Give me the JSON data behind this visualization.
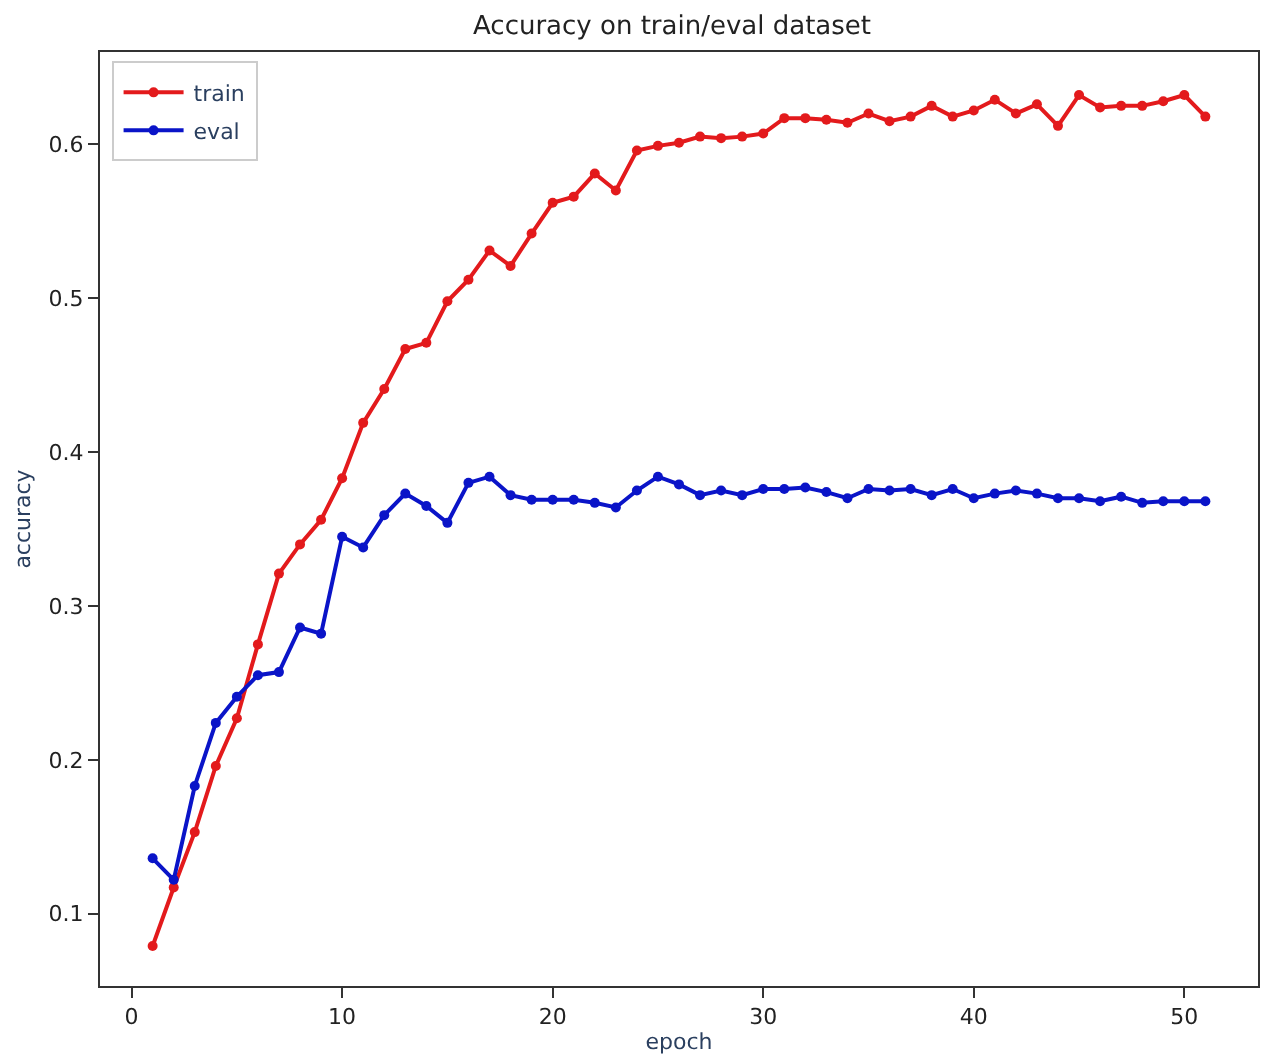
{
  "chart_data": {
    "type": "line",
    "title": "Accuracy on train/eval dataset",
    "xlabel": "epoch",
    "ylabel": "accuracy",
    "x": [
      1,
      2,
      3,
      4,
      5,
      6,
      7,
      8,
      9,
      10,
      11,
      12,
      13,
      14,
      15,
      16,
      17,
      18,
      19,
      20,
      21,
      22,
      23,
      24,
      25,
      26,
      27,
      28,
      29,
      30,
      31,
      32,
      33,
      34,
      35,
      36,
      37,
      38,
      39,
      40,
      41,
      42,
      43,
      44,
      45,
      46,
      47,
      48,
      49,
      50,
      51
    ],
    "series": [
      {
        "name": "train",
        "color": "#e31a1c",
        "values": [
          0.079,
          0.117,
          0.153,
          0.196,
          0.227,
          0.275,
          0.321,
          0.34,
          0.356,
          0.383,
          0.419,
          0.441,
          0.467,
          0.471,
          0.498,
          0.512,
          0.531,
          0.521,
          0.542,
          0.562,
          0.566,
          0.581,
          0.57,
          0.596,
          0.599,
          0.601,
          0.605,
          0.604,
          0.605,
          0.607,
          0.617,
          0.617,
          0.616,
          0.614,
          0.62,
          0.615,
          0.618,
          0.625,
          0.618,
          0.622,
          0.629,
          0.62,
          0.626,
          0.612,
          0.632,
          0.624,
          0.625,
          0.625,
          0.628,
          0.632,
          0.618
        ]
      },
      {
        "name": "eval",
        "color": "#0a14c8",
        "values": [
          0.136,
          0.122,
          0.183,
          0.224,
          0.241,
          0.255,
          0.257,
          0.286,
          0.282,
          0.345,
          0.338,
          0.359,
          0.373,
          0.365,
          0.354,
          0.38,
          0.384,
          0.372,
          0.369,
          0.369,
          0.369,
          0.367,
          0.364,
          0.375,
          0.384,
          0.379,
          0.372,
          0.375,
          0.372,
          0.376,
          0.376,
          0.377,
          0.374,
          0.37,
          0.376,
          0.375,
          0.376,
          0.372,
          0.376,
          0.37,
          0.373,
          0.375,
          0.373,
          0.37,
          0.37,
          0.368,
          0.371,
          0.367,
          0.368,
          0.368,
          0.368
        ]
      }
    ],
    "xlim": [
      -1.5,
      53.5
    ],
    "xticks": [
      0,
      10,
      20,
      30,
      40,
      50
    ],
    "ylim": [
      0.053,
      0.66
    ],
    "yticks": [
      0.1,
      0.2,
      0.3,
      0.4,
      0.5,
      0.6
    ],
    "legend": "top left",
    "marker": "circle",
    "line_style": "solid"
  }
}
